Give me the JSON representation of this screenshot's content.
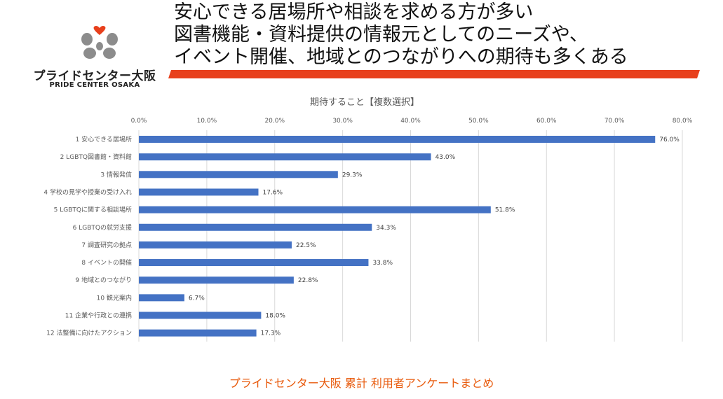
{
  "logo": {
    "name_jp": "プライドセンター大阪",
    "name_en": "PRIDE CENTER OSAKA"
  },
  "headline": {
    "lines": [
      "安心できる居場所や相談を求める方が多い",
      "図書機能・資料提供の情報元としてのニーズや、",
      "イベント開催、地域とのつながりへの期待も多くある"
    ]
  },
  "colors": {
    "bar": "#4472c4",
    "accent": "#e8401c",
    "footer": "#e85a0c",
    "heart": "#e8401c",
    "logo_gray": "#8c8c8c"
  },
  "footer": {
    "text": "プライドセンター大阪 累計 利用者アンケートまとめ"
  },
  "chart_data": {
    "type": "bar",
    "orientation": "horizontal",
    "title": "期待すること【複数選択】",
    "categories": [
      "1 安心できる居場所",
      "2 LGBTQ図書館・資料館",
      "3 情報発信",
      "4 学校の見学や授業の受け入れ",
      "5 LGBTQに関する相談場所",
      "6 LGBTQの就労支援",
      "7 調査研究の拠点",
      "8 イベントの開催",
      "9 地域とのつながり",
      "10 観光案内",
      "11 企業や行政との連携",
      "12 法整備に向けたアクション"
    ],
    "values": [
      76.0,
      43.0,
      29.3,
      17.6,
      51.8,
      34.3,
      22.5,
      33.8,
      22.8,
      6.7,
      18.0,
      17.3
    ],
    "data_labels": [
      "76.0%",
      "43.0%",
      "29.3%",
      "17.6%",
      "51.8%",
      "34.3%",
      "22.5%",
      "33.8%",
      "22.8%",
      "6.7%",
      "18.0%",
      "17.3%"
    ],
    "xlim": [
      0,
      80
    ],
    "ticks": [
      "0.0%",
      "10.0%",
      "20.0%",
      "30.0%",
      "40.0%",
      "50.0%",
      "60.0%",
      "70.0%",
      "80.0%"
    ],
    "grid": true,
    "axis_position": "top"
  }
}
